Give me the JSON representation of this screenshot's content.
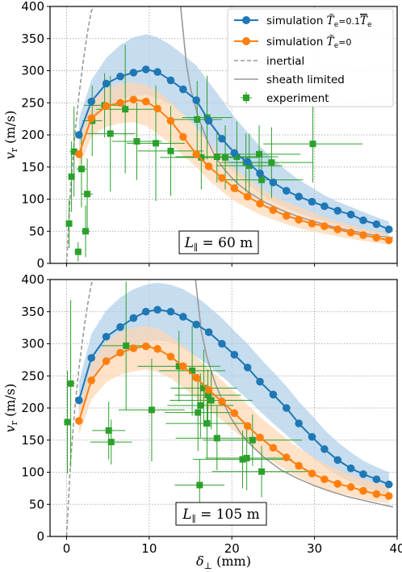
{
  "chart_data": [
    {
      "type": "line",
      "panel": "top",
      "annotation": "L_∥ = 60 m",
      "xlabel": "δ⊥ (mm)",
      "ylabel": "v_r (m/s)",
      "xlim": [
        -2,
        40
      ],
      "ylim": [
        0,
        400
      ],
      "xticks": [
        0,
        10,
        20,
        30,
        40
      ],
      "yticks": [
        0,
        50,
        100,
        150,
        200,
        250,
        300,
        350,
        400
      ],
      "grid": true,
      "legend_position": "top-right",
      "legend": [
        "simulation T̃e = 0.1 T̄e",
        "simulation T̃e = 0",
        "inertial",
        "sheath limited",
        "experiment"
      ],
      "colors": {
        "sim_blue": "#1f77b4",
        "sim_orange": "#ff7f0e",
        "inertial": "#999999",
        "sheath": "#999999",
        "experiment": "#2ca02c",
        "band_blue": "#aecde8",
        "band_orange": "#ffd6b0"
      },
      "series": [
        {
          "name": "simulation T̃e = 0.1 T̄e",
          "color": "#1f77b4",
          "x": [
            1.5,
            3,
            4.8,
            6.5,
            8.1,
            9.6,
            11,
            12.6,
            14.1,
            15.7,
            17.2,
            18.8,
            20.3,
            21.9,
            23.4,
            25,
            26.6,
            28.1,
            29.7,
            31.2,
            32.8,
            34.4,
            35.9,
            37.5,
            39
          ],
          "y": [
            200,
            252,
            280,
            291,
            297,
            302,
            298,
            285,
            271,
            254,
            222,
            194,
            172,
            158,
            140,
            126,
            113,
            104,
            96,
            89,
            82,
            76,
            67,
            61,
            53
          ],
          "band_upper": [
            225,
            285,
            320,
            340,
            352,
            357,
            352,
            340,
            325,
            308,
            282,
            255,
            228,
            204,
            182,
            162,
            145,
            130,
            118,
            106,
            96,
            88,
            80,
            72,
            65
          ],
          "band_lower": [
            178,
            222,
            245,
            255,
            260,
            262,
            257,
            247,
            232,
            212,
            185,
            160,
            140,
            124,
            108,
            96,
            86,
            78,
            71,
            66,
            60,
            54,
            50,
            46,
            42
          ]
        },
        {
          "name": "simulation T̃e = 0",
          "color": "#ff7f0e",
          "x": [
            1.5,
            3,
            4.8,
            6.5,
            8.1,
            9.6,
            11,
            12.6,
            14.1,
            15.7,
            17.2,
            18.8,
            20.3,
            21.9,
            23.4,
            25,
            26.6,
            28.1,
            29.7,
            31.2,
            32.8,
            34.4,
            35.9,
            37.5,
            39
          ],
          "y": [
            170,
            226,
            245,
            250,
            255,
            252,
            241,
            222,
            197,
            170,
            151,
            133,
            117,
            104,
            93,
            83,
            74,
            68,
            62,
            58,
            53,
            48,
            44,
            40,
            36
          ],
          "band_upper": [
            190,
            252,
            272,
            280,
            282,
            278,
            268,
            252,
            232,
            212,
            188,
            166,
            148,
            133,
            118,
            106,
            96,
            88,
            80,
            72,
            66,
            60,
            54,
            50,
            45
          ],
          "band_lower": [
            148,
            198,
            213,
            218,
            220,
            214,
            202,
            186,
            168,
            150,
            130,
            112,
            97,
            86,
            76,
            68,
            61,
            55,
            50,
            46,
            42,
            38,
            35,
            32,
            29
          ]
        }
      ],
      "inertial_line": {
        "x": [
          0,
          0.5,
          1,
          1.5,
          2,
          2.5,
          3,
          3.3
        ],
        "y": [
          0,
          120,
          200,
          262,
          313,
          358,
          393,
          400
        ]
      },
      "sheath_line": {
        "x": [
          13.8,
          14.5,
          15,
          16,
          17,
          18,
          19,
          20,
          21,
          22,
          24,
          26,
          28,
          30,
          32,
          34,
          36,
          38,
          39.5
        ],
        "y": [
          400,
          310,
          272,
          225,
          192,
          166,
          148,
          133,
          121,
          111,
          95,
          83,
          73,
          65,
          58,
          52,
          47,
          42,
          40
        ]
      },
      "experiment": [
        {
          "x": 0.3,
          "y": 62,
          "xerr": 0.3,
          "yerr": 38
        },
        {
          "x": 0.6,
          "y": 135,
          "xerr": 0.4,
          "yerr": 55
        },
        {
          "x": 0.9,
          "y": 174,
          "xerr": 0.5,
          "yerr": 70
        },
        {
          "x": 1.4,
          "y": 18,
          "xerr": 0.4,
          "yerr": 15
        },
        {
          "x": 1.8,
          "y": 147,
          "xerr": 0.6,
          "yerr": 60
        },
        {
          "x": 2.3,
          "y": 50,
          "xerr": 0.5,
          "yerr": 40
        },
        {
          "x": 2.5,
          "y": 108,
          "xerr": 0.7,
          "yerr": 55
        },
        {
          "x": 3.1,
          "y": 222,
          "xerr": 1.2,
          "yerr": 55
        },
        {
          "x": 4.6,
          "y": 246,
          "xerr": 2.5,
          "yerr": 50
        },
        {
          "x": 5.3,
          "y": 202,
          "xerr": 3,
          "yerr": 90
        },
        {
          "x": 7.1,
          "y": 240,
          "xerr": 3.5,
          "yerr": 100
        },
        {
          "x": 8.5,
          "y": 190,
          "xerr": 3,
          "yerr": 60
        },
        {
          "x": 10.8,
          "y": 187,
          "xerr": 3.5,
          "yerr": 90
        },
        {
          "x": 12.6,
          "y": 175,
          "xerr": 4,
          "yerr": 70
        },
        {
          "x": 15.8,
          "y": 224,
          "xerr": 3,
          "yerr": 60
        },
        {
          "x": 16.3,
          "y": 165,
          "xerr": 5,
          "yerr": 50
        },
        {
          "x": 17.0,
          "y": 227,
          "xerr": 3,
          "yerr": 65
        },
        {
          "x": 18.2,
          "y": 166,
          "xerr": 5,
          "yerr": 40
        },
        {
          "x": 19.2,
          "y": 165,
          "xerr": 4,
          "yerr": 50
        },
        {
          "x": 20.6,
          "y": 166,
          "xerr": 5,
          "yerr": 55
        },
        {
          "x": 21.7,
          "y": 157,
          "xerr": 3,
          "yerr": 45
        },
        {
          "x": 22.1,
          "y": 152,
          "xerr": 4,
          "yerr": 50
        },
        {
          "x": 23.3,
          "y": 170,
          "xerr": 5,
          "yerr": 45
        },
        {
          "x": 23.6,
          "y": 130,
          "xerr": 5,
          "yerr": 40
        },
        {
          "x": 24.8,
          "y": 157,
          "xerr": 5,
          "yerr": 55
        },
        {
          "x": 29.8,
          "y": 186,
          "xerr": 6,
          "yerr": 60
        }
      ]
    },
    {
      "type": "line",
      "panel": "bottom",
      "annotation": "L_∥ = 105 m",
      "xlabel": "δ⊥ (mm)",
      "ylabel": "v_r (m/s)",
      "xlim": [
        -2,
        40
      ],
      "ylim": [
        0,
        400
      ],
      "xticks": [
        0,
        10,
        20,
        30,
        40
      ],
      "yticks": [
        0,
        50,
        100,
        150,
        200,
        250,
        300,
        350,
        400
      ],
      "grid": true,
      "series": [
        {
          "name": "simulation T̃e = 0.1 T̄e",
          "color": "#1f77b4",
          "x": [
            1.5,
            3,
            4.8,
            6.5,
            8.1,
            9.6,
            11,
            12.6,
            14.1,
            15.7,
            17.2,
            18.8,
            20.3,
            21.9,
            23.4,
            25,
            26.6,
            28.1,
            29.7,
            31.2,
            32.8,
            34.4,
            35.9,
            37.5,
            39
          ],
          "y": [
            212,
            278,
            311,
            326,
            340,
            350,
            353,
            350,
            342,
            330,
            318,
            300,
            283,
            263,
            241,
            221,
            200,
            176,
            155,
            136,
            119,
            106,
            97,
            89,
            81
          ],
          "band_upper": [
            240,
            315,
            352,
            372,
            385,
            392,
            395,
            392,
            385,
            373,
            358,
            340,
            320,
            300,
            278,
            256,
            234,
            210,
            188,
            166,
            147,
            131,
            118,
            108,
            100
          ],
          "band_lower": [
            186,
            242,
            272,
            285,
            296,
            302,
            305,
            302,
            293,
            280,
            266,
            249,
            232,
            214,
            195,
            176,
            158,
            140,
            123,
            108,
            95,
            85,
            77,
            70,
            64
          ]
        },
        {
          "name": "simulation T̃e = 0",
          "color": "#ff7f0e",
          "x": [
            1.5,
            3,
            4.8,
            6.5,
            8.1,
            9.6,
            11,
            12.6,
            14.1,
            15.7,
            17.2,
            18.8,
            20.3,
            21.9,
            23.4,
            25,
            26.6,
            28.1,
            29.7,
            31.2,
            32.8,
            34.4,
            35.9,
            37.5,
            39
          ],
          "y": [
            180,
            243,
            273,
            286,
            293,
            296,
            292,
            280,
            265,
            247,
            228,
            210,
            192,
            172,
            154,
            138,
            123,
            110,
            98,
            89,
            82,
            77,
            71,
            66,
            63
          ],
          "band_upper": [
            200,
            270,
            303,
            318,
            325,
            328,
            324,
            312,
            297,
            280,
            261,
            243,
            225,
            205,
            186,
            169,
            152,
            138,
            125,
            114,
            104,
            96,
            89,
            83,
            78
          ],
          "band_lower": [
            158,
            213,
            240,
            252,
            257,
            260,
            256,
            246,
            232,
            215,
            198,
            181,
            164,
            146,
            130,
            116,
            103,
            92,
            82,
            74,
            68,
            63,
            58,
            54,
            51
          ]
        }
      ],
      "inertial_line": {
        "x": [
          0,
          0.5,
          1,
          1.5,
          2,
          2.5,
          3,
          3.3
        ],
        "y": [
          0,
          120,
          200,
          262,
          313,
          358,
          393,
          400
        ]
      },
      "sheath_line": {
        "x": [
          15.6,
          16.3,
          17,
          18,
          19,
          20,
          21,
          22,
          24,
          26,
          28,
          30,
          32,
          34,
          36,
          38,
          39.5
        ],
        "y": [
          400,
          320,
          278,
          238,
          207,
          182,
          162,
          146,
          122,
          103,
          90,
          79,
          70,
          62,
          56,
          50,
          46
        ]
      },
      "experiment": [
        {
          "x": 0.1,
          "y": 178,
          "xerr": 0.4,
          "yerr": 80
        },
        {
          "x": 0.5,
          "y": 238,
          "xerr": 0.5,
          "yerr": 130
        },
        {
          "x": 5.1,
          "y": 165,
          "xerr": 2,
          "yerr": 45
        },
        {
          "x": 5.4,
          "y": 147,
          "xerr": 2.5,
          "yerr": 35
        },
        {
          "x": 7.2,
          "y": 297,
          "xerr": 3,
          "yerr": 100
        },
        {
          "x": 10.3,
          "y": 197,
          "xerr": 4,
          "yerr": 80
        },
        {
          "x": 13.6,
          "y": 265,
          "xerr": 5,
          "yerr": 55
        },
        {
          "x": 15.2,
          "y": 258,
          "xerr": 4,
          "yerr": 70
        },
        {
          "x": 15.9,
          "y": 193,
          "xerr": 4,
          "yerr": 60
        },
        {
          "x": 16.1,
          "y": 80,
          "xerr": 3,
          "yerr": 40
        },
        {
          "x": 16.2,
          "y": 204,
          "xerr": 4,
          "yerr": 50
        },
        {
          "x": 16.6,
          "y": 231,
          "xerr": 4,
          "yerr": 60
        },
        {
          "x": 17.0,
          "y": 176,
          "xerr": 5,
          "yerr": 55
        },
        {
          "x": 17.1,
          "y": 220,
          "xerr": 4,
          "yerr": 40
        },
        {
          "x": 17.5,
          "y": 212,
          "xerr": 5,
          "yerr": 45
        },
        {
          "x": 18.2,
          "y": 153,
          "xerr": 5,
          "yerr": 50
        },
        {
          "x": 21.3,
          "y": 120,
          "xerr": 6,
          "yerr": 45
        },
        {
          "x": 21.8,
          "y": 122,
          "xerr": 5,
          "yerr": 50
        },
        {
          "x": 23.6,
          "y": 101,
          "xerr": 6,
          "yerr": 40
        },
        {
          "x": 22.5,
          "y": 150,
          "xerr": 6,
          "yerr": 40
        }
      ]
    }
  ]
}
